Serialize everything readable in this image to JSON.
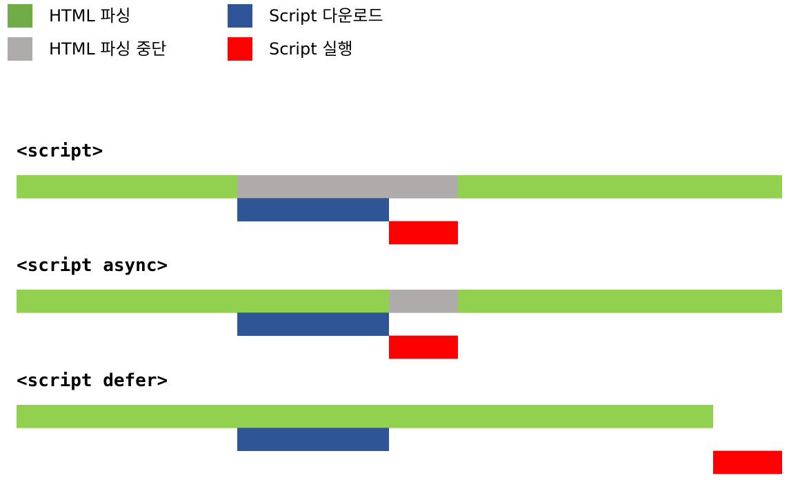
{
  "legend": [
    {
      "label": "HTML 파싱",
      "color": "#70ad47",
      "role": "parsing"
    },
    {
      "label": "HTML 파싱 중단",
      "color": "#afabab",
      "role": "parsing-paused"
    },
    {
      "label": "Script 다운로드",
      "color": "#2f5597",
      "role": "download"
    },
    {
      "label": "Script 실행",
      "color": "#ff0000",
      "role": "execute"
    }
  ],
  "bar_colors": {
    "parsing": "#92d050",
    "parsing-paused": "#afabab",
    "download": "#2f5597",
    "execute": "#ff0000"
  },
  "sections": [
    {
      "label": "<script>",
      "lanes": [
        [
          {
            "role": "parsing",
            "start": 0,
            "end": 32
          },
          {
            "role": "parsing-paused",
            "start": 32,
            "end": 64
          },
          {
            "role": "parsing",
            "start": 64,
            "end": 111
          }
        ],
        [
          {
            "role": "download",
            "start": 32,
            "end": 54
          }
        ],
        [
          {
            "role": "execute",
            "start": 54,
            "end": 64
          }
        ]
      ]
    },
    {
      "label": "<script async>",
      "lanes": [
        [
          {
            "role": "parsing",
            "start": 0,
            "end": 54
          },
          {
            "role": "parsing-paused",
            "start": 54,
            "end": 64
          },
          {
            "role": "parsing",
            "start": 64,
            "end": 111
          }
        ],
        [
          {
            "role": "download",
            "start": 32,
            "end": 54
          }
        ],
        [
          {
            "role": "execute",
            "start": 54,
            "end": 64
          }
        ]
      ]
    },
    {
      "label": "<script defer>",
      "lanes": [
        [
          {
            "role": "parsing",
            "start": 0,
            "end": 101
          }
        ],
        [
          {
            "role": "download",
            "start": 32,
            "end": 54
          }
        ],
        [
          {
            "role": "execute",
            "start": 101,
            "end": 111
          }
        ]
      ]
    }
  ]
}
